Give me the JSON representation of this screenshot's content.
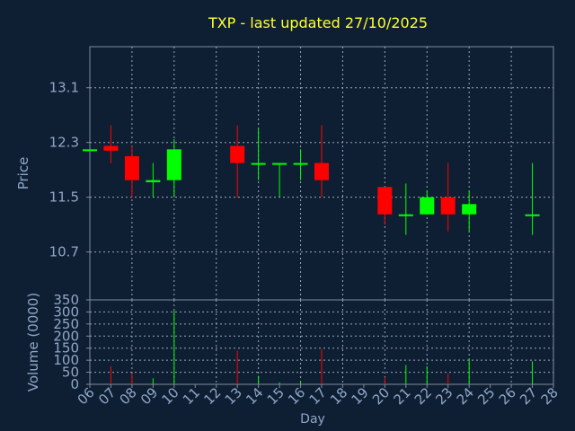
{
  "colors": {
    "background": "#0f1f33",
    "plot_background": "#0f1f33",
    "axis": "#7f8b99",
    "grid": "#9aa6b4",
    "title": "#ffff33",
    "label": "#8fa7c7",
    "up": "#00ff00",
    "down": "#ff0000"
  },
  "chart_data": [
    {
      "type": "candlestick",
      "title": "TXP - last updated 27/10/2025",
      "ylabel": "Price",
      "ylim": [
        10.0,
        13.7
      ],
      "yticks": [
        "10.7",
        "11.5",
        "12.3",
        "13.1"
      ],
      "grid": true,
      "days": [
        "06",
        "07",
        "08",
        "09",
        "10",
        "11",
        "12",
        "13",
        "14",
        "15",
        "16",
        "17",
        "18",
        "19",
        "20",
        "21",
        "22",
        "23",
        "24",
        "25",
        "26",
        "27",
        "28"
      ],
      "candles": [
        {
          "day": "06",
          "open": 12.2,
          "high": 12.2,
          "low": 12.2,
          "close": 12.2
        },
        {
          "day": "07",
          "open": 12.25,
          "high": 12.55,
          "low": 12.0,
          "close": 12.18
        },
        {
          "day": "08",
          "open": 12.1,
          "high": 12.25,
          "low": 11.5,
          "close": 11.75
        },
        {
          "day": "09",
          "open": 11.72,
          "high": 12.0,
          "low": 11.5,
          "close": 11.75
        },
        {
          "day": "10",
          "open": 11.75,
          "high": 12.35,
          "low": 11.5,
          "close": 12.2
        },
        {
          "day": "13",
          "open": 12.25,
          "high": 12.55,
          "low": 11.5,
          "close": 12.0
        },
        {
          "day": "14",
          "open": 11.98,
          "high": 12.5,
          "low": 11.75,
          "close": 12.0
        },
        {
          "day": "15",
          "open": 11.98,
          "high": 12.0,
          "low": 11.5,
          "close": 12.0
        },
        {
          "day": "16",
          "open": 11.98,
          "high": 12.2,
          "low": 11.75,
          "close": 12.0
        },
        {
          "day": "17",
          "open": 12.0,
          "high": 12.55,
          "low": 11.5,
          "close": 11.75
        },
        {
          "day": "20",
          "open": 11.65,
          "high": 11.65,
          "low": 11.1,
          "close": 11.25
        },
        {
          "day": "21",
          "open": 11.23,
          "high": 11.7,
          "low": 10.95,
          "close": 11.25
        },
        {
          "day": "22",
          "open": 11.25,
          "high": 11.6,
          "low": 11.25,
          "close": 11.5
        },
        {
          "day": "23",
          "open": 11.5,
          "high": 12.0,
          "low": 11.0,
          "close": 11.25
        },
        {
          "day": "24",
          "open": 11.25,
          "high": 11.6,
          "low": 11.0,
          "close": 11.4
        },
        {
          "day": "27",
          "open": 11.23,
          "high": 12.0,
          "low": 10.95,
          "close": 11.25
        }
      ]
    },
    {
      "type": "bar",
      "ylabel": "Volume (0000)",
      "xlabel": "Day",
      "ylim": [
        0,
        350
      ],
      "yticks": [
        "0",
        "50",
        "100",
        "150",
        "200",
        "250",
        "300",
        "350"
      ],
      "grid": true,
      "days": [
        "06",
        "07",
        "08",
        "09",
        "10",
        "11",
        "12",
        "13",
        "14",
        "15",
        "16",
        "17",
        "18",
        "19",
        "20",
        "21",
        "22",
        "23",
        "24",
        "25",
        "26",
        "27",
        "28"
      ],
      "volumes": [
        {
          "day": "06",
          "value": 0,
          "direction": "up"
        },
        {
          "day": "07",
          "value": 75,
          "direction": "down"
        },
        {
          "day": "08",
          "value": 45,
          "direction": "down"
        },
        {
          "day": "09",
          "value": 25,
          "direction": "up"
        },
        {
          "day": "10",
          "value": 305,
          "direction": "up"
        },
        {
          "day": "13",
          "value": 140,
          "direction": "down"
        },
        {
          "day": "14",
          "value": 35,
          "direction": "up"
        },
        {
          "day": "15",
          "value": 8,
          "direction": "up"
        },
        {
          "day": "16",
          "value": 12,
          "direction": "up"
        },
        {
          "day": "17",
          "value": 145,
          "direction": "down"
        },
        {
          "day": "20",
          "value": 30,
          "direction": "down"
        },
        {
          "day": "21",
          "value": 80,
          "direction": "up"
        },
        {
          "day": "22",
          "value": 75,
          "direction": "up"
        },
        {
          "day": "23",
          "value": 45,
          "direction": "down"
        },
        {
          "day": "24",
          "value": 105,
          "direction": "up"
        },
        {
          "day": "27",
          "value": 95,
          "direction": "up"
        }
      ]
    }
  ]
}
